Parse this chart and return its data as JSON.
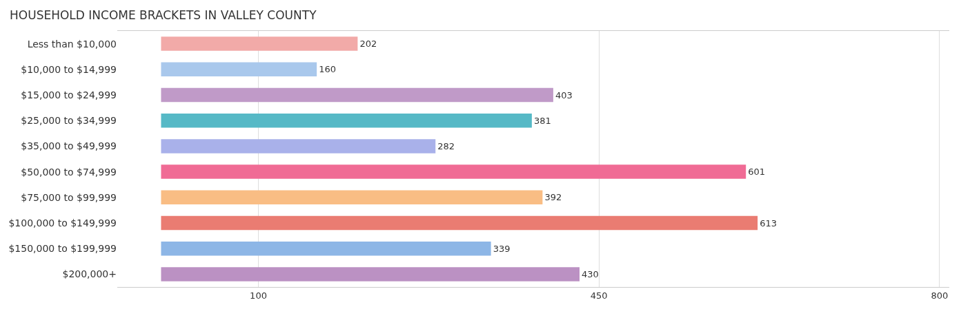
{
  "chart_data": {
    "type": "bar",
    "orientation": "horizontal",
    "title": "HOUSEHOLD INCOME BRACKETS IN VALLEY COUNTY",
    "categories": [
      "Less than $10,000",
      "$10,000 to $14,999",
      "$15,000 to $24,999",
      "$25,000 to $34,999",
      "$35,000 to $49,999",
      "$50,000 to $74,999",
      "$75,000 to $99,999",
      "$100,000 to $149,999",
      "$150,000 to $199,999",
      "$200,000+"
    ],
    "values": [
      202,
      160,
      403,
      381,
      282,
      601,
      392,
      613,
      339,
      430
    ],
    "colors": [
      "#f2aaa8",
      "#a9c8ec",
      "#c09ac8",
      "#56b9c6",
      "#a9b1ea",
      "#f06b95",
      "#f9bd84",
      "#ea7c72",
      "#8db6e6",
      "#bb91c3"
    ],
    "xlim": [
      -45,
      810
    ],
    "xticks": [
      100,
      450,
      800
    ],
    "grid": "x",
    "data_labels": true
  }
}
